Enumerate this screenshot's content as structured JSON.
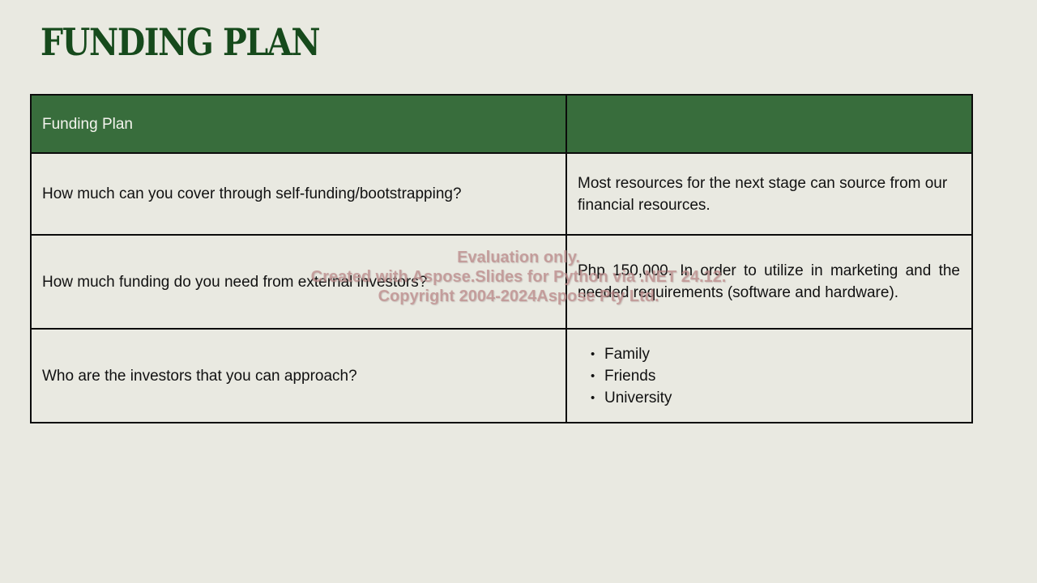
{
  "slide": {
    "title": "FUNDING PLAN"
  },
  "table": {
    "header": {
      "col1": "Funding Plan",
      "col2": ""
    },
    "rows": [
      {
        "question": "How much can you cover through self-funding/bootstrapping?",
        "answer": "Most resources for the next stage can source from our financial resources."
      },
      {
        "question": "How much funding do you need from external investors?",
        "answer": "Php 150,000. In order to utilize in marketing and the needed requirements (software and hardware)."
      },
      {
        "question": "Who are the investors that you can approach?",
        "answer_list": [
          "Family",
          "Friends",
          "University"
        ]
      }
    ]
  },
  "watermark": {
    "line1": "Evaluation only.",
    "line2": "Created with Aspose.Slides for Python via .NET 24.12.",
    "line3": "Copyright 2004-2024Aspose Pty Ltd."
  },
  "colors": {
    "background": "#e9e9e1",
    "title": "#164a1c",
    "header_fill": "#386d3c",
    "header_text": "#f4f4ee",
    "border": "#0b0b0b"
  }
}
